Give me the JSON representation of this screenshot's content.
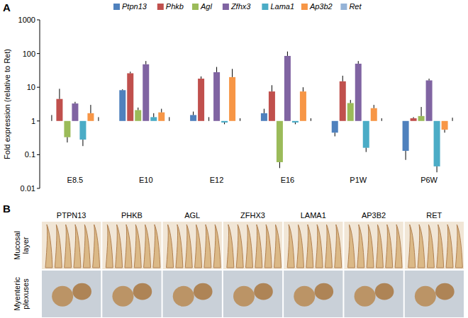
{
  "panels": {
    "a": "A",
    "b": "B"
  },
  "chart_data": {
    "type": "bar",
    "y_label": "Fold expression (relative to Ret)",
    "categories": [
      "E8.5",
      "E10",
      "E12",
      "E16",
      "P1W",
      "P6W"
    ],
    "log": "y",
    "legend": "top",
    "ylim": [
      0.01,
      1000
    ],
    "yticks": [
      0.01,
      0.1,
      1,
      10,
      100,
      1000
    ],
    "series": [
      {
        "name": "Ptpn13",
        "color": "#4f81bd",
        "values": [
          1.0,
          8.2,
          1.5,
          1.7,
          0.45,
          0.13
        ],
        "errors": [
          0.5,
          0.5,
          0.4,
          0.6,
          0.1,
          0.06
        ]
      },
      {
        "name": "Phkb",
        "color": "#c0504d",
        "values": [
          4.5,
          26,
          18,
          7.5,
          15,
          1.2
        ],
        "errors": [
          4.5,
          3,
          3,
          4,
          7,
          0.1
        ]
      },
      {
        "name": "Agl",
        "color": "#9bbb59",
        "values": [
          0.33,
          2.1,
          1.0,
          0.06,
          3.4,
          1.4
        ],
        "errors": [
          0.1,
          0.4,
          0.3,
          0.02,
          0.8,
          1.2
        ]
      },
      {
        "name": "Zfhx3",
        "color": "#8064a2",
        "values": [
          3.3,
          48,
          28,
          85,
          50,
          16
        ],
        "errors": [
          0.4,
          12,
          12,
          30,
          10,
          2
        ]
      },
      {
        "name": "Lama1",
        "color": "#4bacc6",
        "values": [
          0.28,
          1.3,
          0.9,
          0.9,
          0.16,
          0.045
        ],
        "errors": [
          0.1,
          0.4,
          0.1,
          0.1,
          0.04,
          0.015
        ]
      },
      {
        "name": "Ap3b2",
        "color": "#f79646",
        "values": [
          1.7,
          1.8,
          20,
          7.5,
          2.4,
          0.55
        ],
        "errors": [
          1.3,
          0.5,
          15,
          2.5,
          0.6,
          0.1
        ]
      },
      {
        "name": "Ret",
        "color": "#95b3d7",
        "values": [
          1,
          1,
          1,
          1,
          1,
          1
        ],
        "errors": [
          0.3,
          0.3,
          0.2,
          0.2,
          0.2,
          0.25
        ]
      }
    ]
  },
  "image_grid": {
    "columns": [
      "PTPN13",
      "PHKB",
      "AGL",
      "ZFHX3",
      "LAMA1",
      "AP3B2",
      "RET"
    ],
    "rows": [
      "Mucosal layer",
      "Myenteric plexuses"
    ]
  }
}
